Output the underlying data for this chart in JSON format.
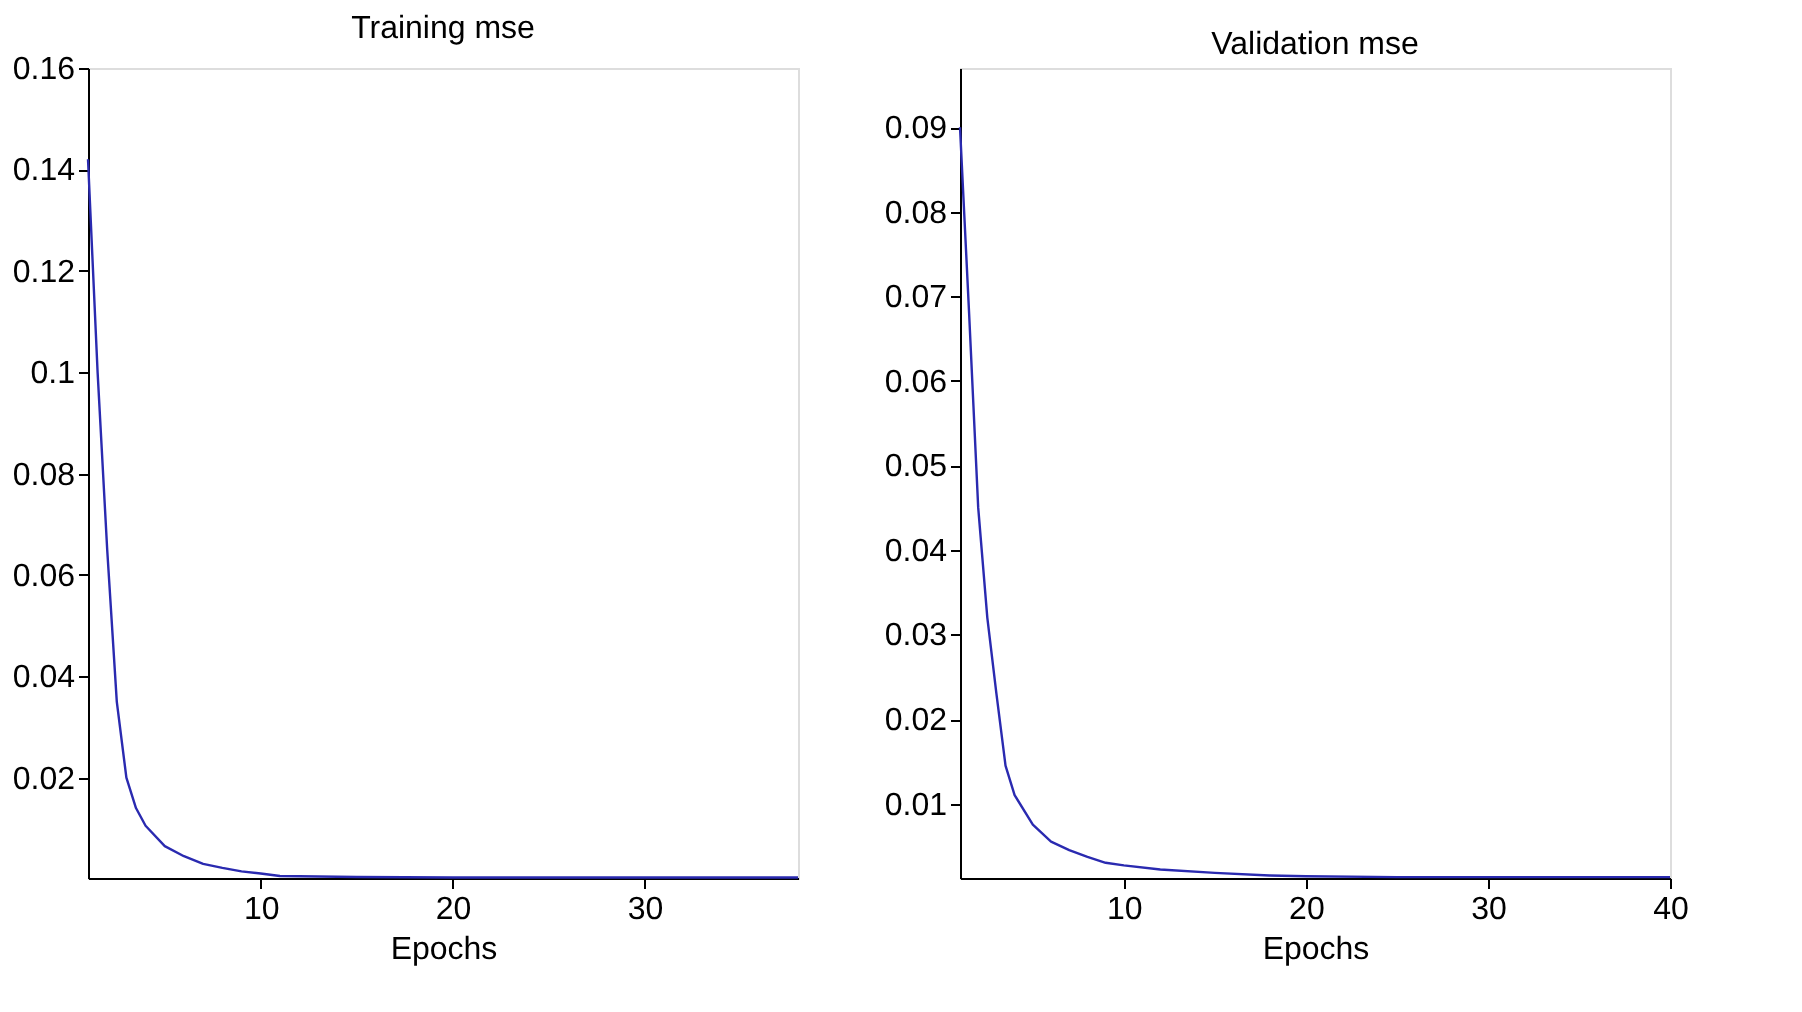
{
  "chart_data": [
    {
      "type": "line",
      "title": "Training mse",
      "xlabel": "Epochs",
      "xlim": [
        1,
        38
      ],
      "xticks": [
        10,
        20,
        30
      ],
      "ylim": [
        0.0002,
        0.16
      ],
      "yticks": [
        0.02,
        0.04,
        0.06,
        0.08,
        {
          "value": 0.1,
          "label": "0.1"
        },
        0.12,
        0.14,
        0.16
      ],
      "grid": false,
      "marker": "none",
      "line_style": "solid",
      "series": [
        {
          "color": "#2a2ab0",
          "x": [
            1,
            1.5,
            2,
            2.5,
            3,
            3.5,
            4,
            5,
            6,
            7,
            8,
            9,
            10,
            11,
            15,
            20,
            30,
            38
          ],
          "values": [
            0.142,
            0.1,
            0.065,
            0.035,
            0.02,
            0.014,
            0.0105,
            0.0065,
            0.0045,
            0.003,
            0.0022,
            0.0015,
            0.0011,
            0.0006,
            0.0004,
            0.0003,
            0.0003,
            0.0003
          ]
        }
      ]
    },
    {
      "type": "line",
      "title": "Validation mse",
      "xlabel": "Epochs",
      "xlim": [
        1,
        40
      ],
      "xticks": [
        10,
        20,
        30,
        40
      ],
      "ylim": [
        0.0012,
        0.097
      ],
      "yticks": [
        0.01,
        0.02,
        0.03,
        0.04,
        0.05,
        0.06,
        0.07,
        0.08,
        0.09
      ],
      "grid": false,
      "marker": "none",
      "line_style": "solid",
      "series": [
        {
          "color": "#2a2ab0",
          "x": [
            1,
            1.5,
            2,
            2.5,
            3,
            3.5,
            4,
            5,
            6,
            7,
            8,
            9,
            10,
            12,
            15,
            18,
            20,
            25,
            30,
            40
          ],
          "values": [
            0.09,
            0.068,
            0.045,
            0.032,
            0.023,
            0.0145,
            0.011,
            0.0075,
            0.0055,
            0.0045,
            0.0037,
            0.003,
            0.0027,
            0.0022,
            0.0018,
            0.0015,
            0.0014,
            0.0013,
            0.0013,
            0.0013
          ]
        }
      ]
    }
  ]
}
